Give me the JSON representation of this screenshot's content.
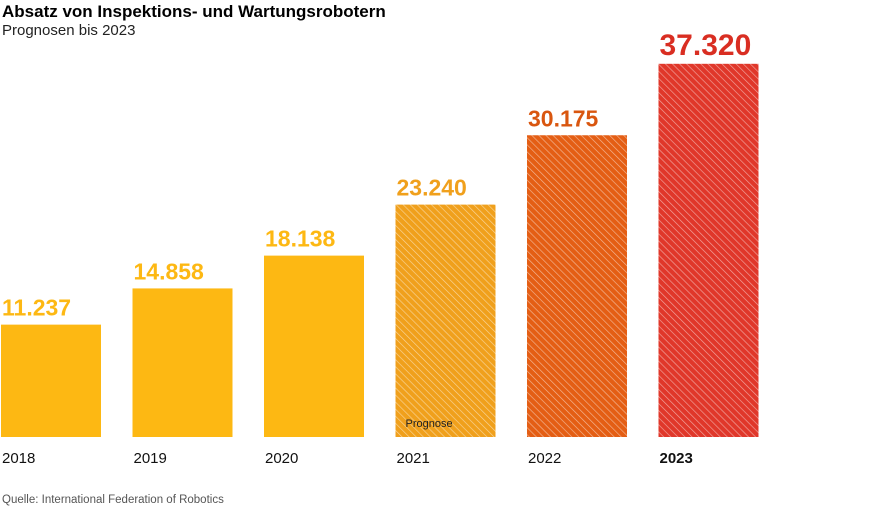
{
  "header": {
    "title": "Absatz von Inspektions- und Wartungsrobotern",
    "subtitle": "Prognosen bis 2023"
  },
  "footer": {
    "source": "Quelle: International Federation of Robotics"
  },
  "chart_data": {
    "type": "bar",
    "title": "Absatz von Inspektions- und Wartungsrobotern",
    "subtitle": "Prognosen bis 2023",
    "categories": [
      "2018",
      "2019",
      "2020",
      "2021",
      "2022",
      "2023"
    ],
    "values": [
      11237,
      14858,
      18138,
      23240,
      30175,
      37320
    ],
    "value_labels": [
      "11.237",
      "14.858",
      "18.138",
      "23.240",
      "30.175",
      "37.320"
    ],
    "forecast_from": "2021",
    "forecast_note": "Prognose",
    "highlighted_category": "2023",
    "colors": [
      "#fdb813",
      "#fdb813",
      "#fdb813",
      "#f0a01c",
      "#e45e14",
      "#e0372a"
    ],
    "label_colors": [
      "#fdb813",
      "#fdb813",
      "#fdb813",
      "#f0a01c",
      "#d9560f",
      "#d92e22"
    ],
    "xlabel": "",
    "ylabel": "",
    "ylim": [
      0,
      40000
    ],
    "grid": false,
    "legend": "none",
    "source": "Quelle: International Federation of Robotics"
  }
}
